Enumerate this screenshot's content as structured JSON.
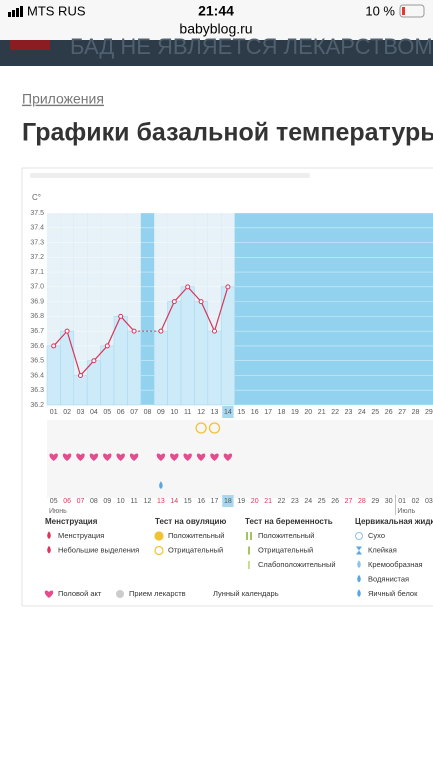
{
  "status_bar": {
    "carrier": "MTS RUS",
    "time": "21:44",
    "battery": "10 %",
    "url": "babyblog.ru"
  },
  "banner": "БАД НЕ ЯВЛЯЕТСЯ ЛЕКАРСТВОМ",
  "breadcrumb": "Приложения",
  "title": "Графики базальной температуры",
  "chart_data": {
    "type": "line",
    "y_unit": "C°",
    "categories": [
      "01",
      "02",
      "03",
      "04",
      "05",
      "06",
      "07",
      "08",
      "09",
      "10",
      "11",
      "12",
      "13",
      "14",
      "15",
      "16",
      "17",
      "18",
      "19",
      "20",
      "21",
      "22",
      "23",
      "24",
      "25",
      "26",
      "27",
      "28",
      "29"
    ],
    "values": [
      36.6,
      36.7,
      36.4,
      36.5,
      36.6,
      36.8,
      36.7,
      null,
      36.7,
      36.9,
      37.0,
      36.9,
      36.7,
      37.0,
      null,
      null,
      null,
      null,
      null,
      null,
      null,
      null,
      null,
      null,
      null,
      null,
      null,
      null,
      null
    ],
    "current_day": "14",
    "ylim": [
      36.2,
      37.5
    ],
    "yticks": [
      36.2,
      36.3,
      36.4,
      36.5,
      36.6,
      36.7,
      36.8,
      36.9,
      {
        "value": 37,
        "label": "37.0"
      },
      37.1,
      37.2,
      37.3,
      37.4,
      37.5
    ],
    "intercourse_days": [
      "01",
      "02",
      "03",
      "04",
      "05",
      "06",
      "07",
      "09",
      "10",
      "11",
      "12",
      "13",
      "14"
    ],
    "ovulation_negative_days": [
      "12",
      "13"
    ],
    "cervical_days": [
      "09"
    ],
    "dates": [
      "05",
      "06",
      "07",
      "08",
      "09",
      "10",
      "11",
      "12",
      "13",
      "14",
      "15",
      "16",
      "17",
      "18",
      "19",
      "20",
      "21",
      "22",
      "23",
      "24",
      "25",
      "26",
      "27",
      "28",
      "29",
      "30",
      "01",
      "02",
      "03"
    ],
    "weekend_dates": [
      "06",
      "07",
      "13",
      "14",
      "20",
      "21",
      "27",
      "28"
    ],
    "today_date": "18",
    "months": [
      {
        "label": "Июнь",
        "at": 0
      },
      {
        "label": "Июль",
        "at": 26
      }
    ]
  },
  "legend": [
    {
      "title": "Менструация",
      "items": [
        "Менструация",
        "Небольшие выделения"
      ]
    },
    {
      "title": "Тест на овуляцию",
      "items": [
        "Положительный",
        "Отрицательный"
      ]
    },
    {
      "title": "Тест на беременность",
      "items": [
        "Положительный",
        "Отрицательный",
        "Слабоположительный"
      ]
    },
    {
      "title": "Цервикальная жидкость",
      "items": [
        "Сухо",
        "Клейкая",
        "Кремообразная",
        "Водянистая",
        "Яичный белок"
      ]
    }
  ],
  "legend_bottom": [
    "Половой акт",
    "Прием лекарств",
    "Лунный календарь"
  ]
}
